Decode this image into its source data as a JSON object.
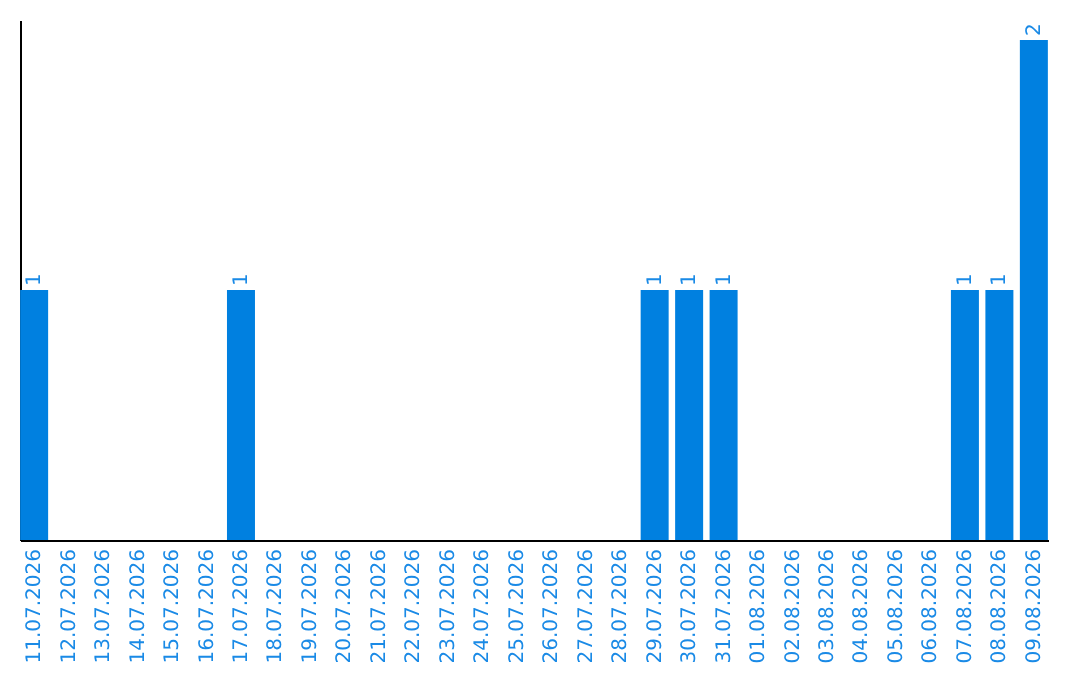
{
  "chart_data": {
    "type": "bar",
    "categories": [
      "11.07.2026",
      "12.07.2026",
      "13.07.2026",
      "14.07.2026",
      "15.07.2026",
      "16.07.2026",
      "17.07.2026",
      "18.07.2026",
      "19.07.2026",
      "20.07.2026",
      "21.07.2026",
      "22.07.2026",
      "23.07.2026",
      "24.07.2026",
      "25.07.2026",
      "26.07.2026",
      "27.07.2026",
      "28.07.2026",
      "29.07.2026",
      "30.07.2026",
      "31.07.2026",
      "01.08.2026",
      "02.08.2026",
      "03.08.2026",
      "04.08.2026",
      "05.08.2026",
      "06.08.2026",
      "07.08.2026",
      "08.08.2026",
      "09.08.2026"
    ],
    "values": [
      1,
      0,
      0,
      0,
      0,
      0,
      1,
      0,
      0,
      0,
      0,
      0,
      0,
      0,
      0,
      0,
      0,
      0,
      1,
      1,
      1,
      0,
      0,
      0,
      0,
      0,
      0,
      1,
      1,
      2
    ],
    "value_labels": [
      "1",
      null,
      null,
      null,
      null,
      null,
      "1",
      null,
      null,
      null,
      null,
      null,
      null,
      null,
      null,
      null,
      null,
      null,
      "1",
      "1",
      "1",
      null,
      null,
      null,
      null,
      null,
      null,
      "1",
      "1",
      "2"
    ],
    "color": "#0080e0",
    "ylim": [
      0,
      2.08
    ],
    "tick_labels": "x",
    "grid": false
  }
}
